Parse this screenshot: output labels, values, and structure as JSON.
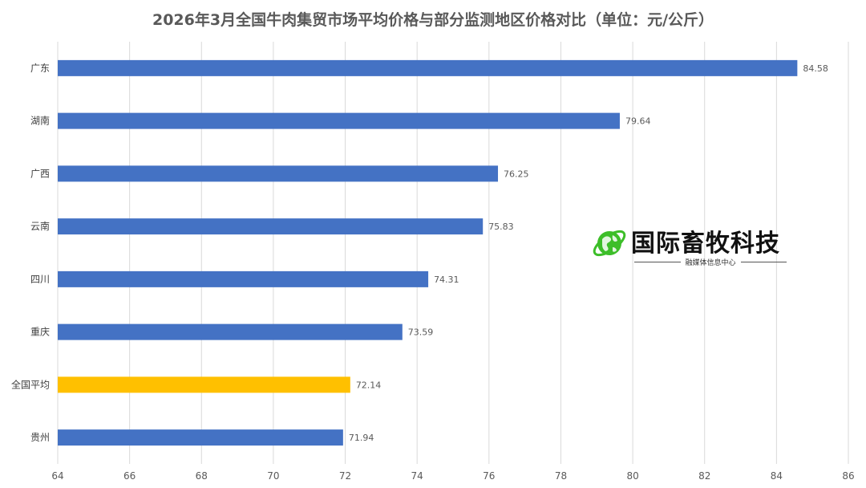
{
  "chart_data": {
    "type": "bar",
    "orientation": "horizontal",
    "title": "2026年3月全国牛肉集贸市场平均价格与部分监测地区价格对比（单位：元/公斤）",
    "categories": [
      "广东",
      "湖南",
      "广西",
      "云南",
      "四川",
      "重庆",
      "全国平均",
      "贵州"
    ],
    "values": [
      84.58,
      79.64,
      76.25,
      75.83,
      74.31,
      73.59,
      72.14,
      71.94
    ],
    "data_labels": [
      "84.58",
      "79.64",
      "76.25",
      "75.83",
      "74.31",
      "73.59",
      "72.14",
      "71.94"
    ],
    "highlight_category": "全国平均",
    "xlim": [
      64,
      86
    ],
    "x_ticks": [
      64,
      66,
      68,
      70,
      72,
      74,
      76,
      78,
      80,
      82,
      84,
      86
    ],
    "grid": "vertical",
    "legend": "none",
    "colors": {
      "bar": "#4472C4",
      "highlight": "#FFC000",
      "grid": "#D9D9D9"
    }
  },
  "watermark": {
    "name": "国际畜牧科技",
    "subtitle": "融媒体信息中心"
  }
}
